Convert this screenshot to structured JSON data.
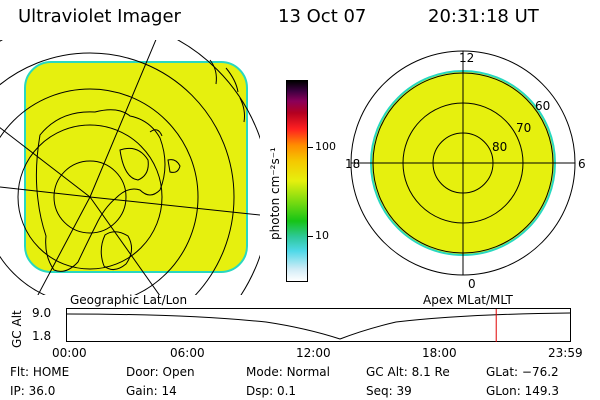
{
  "header": {
    "instrument": "Ultraviolet Imager",
    "date": "13 Oct 07",
    "time": "20:31:18 UT"
  },
  "colors": {
    "image_fill": "#e6f00e",
    "image_edge": "#28d8c0",
    "alt_marker": "#e00000"
  },
  "colorbar": {
    "unit_label": "photon cm⁻²s⁻¹",
    "ticks": [
      "100",
      "10"
    ]
  },
  "left_panel": {
    "caption": "Geographic Lat/Lon"
  },
  "right_panel": {
    "caption": "Apex MLat/MLT",
    "mlt_labels": {
      "top": "12",
      "left": "18",
      "right": "6",
      "bottom": "0"
    },
    "mlat_labels": [
      "60",
      "70",
      "80"
    ]
  },
  "altitude_plot": {
    "ylabel": "GC Alt",
    "yticks": [
      "9.0",
      "1.8"
    ],
    "xticks": [
      "00:00",
      "06:00",
      "12:00",
      "18:00",
      "23:59"
    ],
    "marker_time_hours": 20.52
  },
  "status": {
    "row1": [
      {
        "key": "Flt:",
        "value": "HOME"
      },
      {
        "key": "Door:",
        "value": "Open"
      },
      {
        "key": "Mode:",
        "value": "Normal"
      },
      {
        "key": "GC Alt:",
        "value": "8.1 Re"
      },
      {
        "key": "GLat:",
        "value": "−76.2"
      }
    ],
    "row2": [
      {
        "key": "IP:",
        "value": "36.0"
      },
      {
        "key": "Gain:",
        "value": "14"
      },
      {
        "key": "Dsp:",
        "value": "0.1"
      },
      {
        "key": "Seq:",
        "value": "39"
      },
      {
        "key": "GLon:",
        "value": "149.3"
      }
    ]
  }
}
